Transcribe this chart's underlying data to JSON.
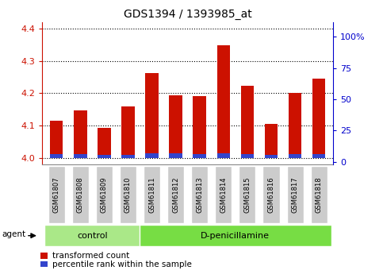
{
  "title": "GDS1394 / 1393985_at",
  "categories": [
    "GSM61807",
    "GSM61808",
    "GSM61809",
    "GSM61810",
    "GSM61811",
    "GSM61812",
    "GSM61813",
    "GSM61814",
    "GSM61815",
    "GSM61816",
    "GSM61817",
    "GSM61818"
  ],
  "red_values": [
    4.115,
    4.148,
    4.093,
    4.16,
    4.262,
    4.193,
    4.192,
    4.347,
    4.222,
    4.105,
    4.2,
    4.245
  ],
  "blue_values": [
    0.012,
    0.012,
    0.01,
    0.009,
    0.014,
    0.014,
    0.012,
    0.014,
    0.013,
    0.009,
    0.013,
    0.013
  ],
  "ylim_left": [
    3.98,
    4.42
  ],
  "ylim_right": [
    -2.2,
    112
  ],
  "yticks_left": [
    4.0,
    4.1,
    4.2,
    4.3,
    4.4
  ],
  "yticks_right": [
    0,
    25,
    50,
    75,
    100
  ],
  "ytick_labels_right": [
    "0",
    "25",
    "50",
    "75",
    "100%"
  ],
  "ctrl_count": 4,
  "treat_count": 8,
  "control_label": "control",
  "treatment_label": "D-penicillamine",
  "agent_label": "agent",
  "legend_red": "transformed count",
  "legend_blue": "percentile rank within the sample",
  "bar_width": 0.55,
  "base_value": 4.0,
  "bar_color_red": "#cc1100",
  "bar_color_blue": "#3344cc",
  "control_bg": "#aae888",
  "treatment_bg": "#77dd44",
  "tick_bg": "#cccccc",
  "right_axis_color": "#0000cc",
  "left_axis_color": "#cc1100"
}
